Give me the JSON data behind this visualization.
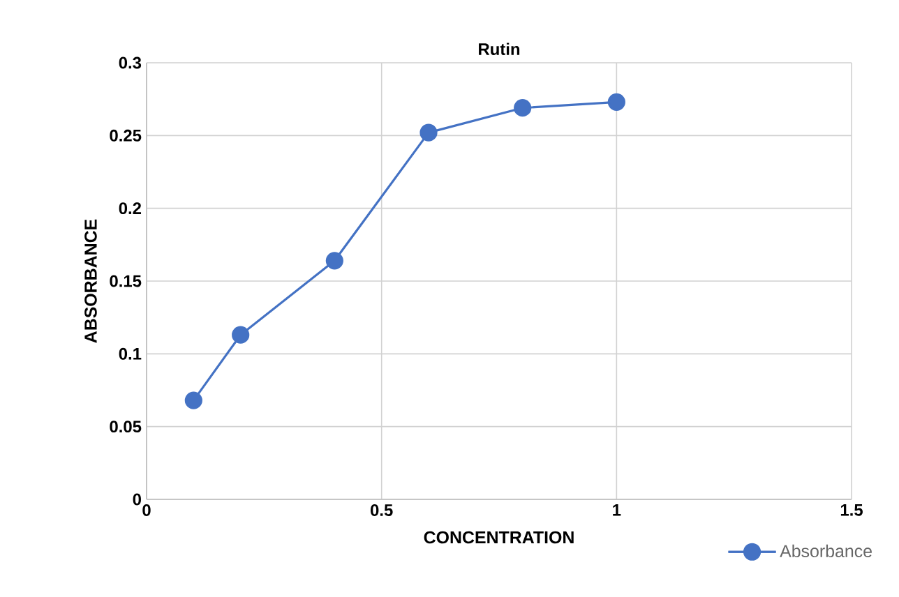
{
  "chart_data": {
    "type": "line",
    "title": "Rutin",
    "xlabel": "CONCENTRATION",
    "ylabel": "ABSORBANCE",
    "x": [
      0.1,
      0.2,
      0.4,
      0.6,
      0.8,
      1.0
    ],
    "series": [
      {
        "name": "Absorbance",
        "color": "#4472c4",
        "values": [
          0.068,
          0.113,
          0.164,
          0.252,
          0.269,
          0.273
        ]
      }
    ],
    "xlim": [
      0,
      1.5
    ],
    "xticks": [
      0,
      0.5,
      1,
      1.5
    ],
    "ylim": [
      0,
      0.3
    ],
    "yticks": [
      0,
      0.05,
      0.1,
      0.15,
      0.2,
      0.25,
      0.3
    ],
    "grid": true,
    "legend": "bottom right",
    "marker": "circle",
    "line_style": "solid"
  }
}
